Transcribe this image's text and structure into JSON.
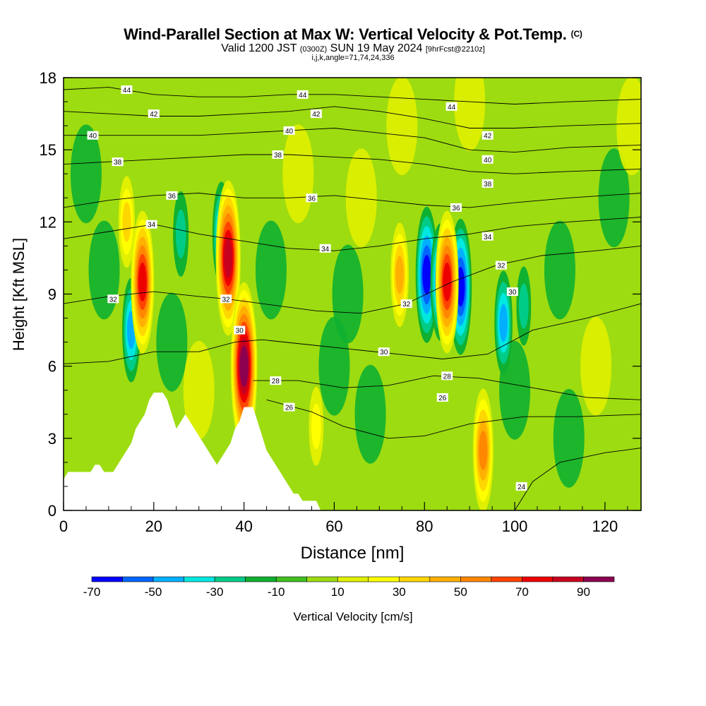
{
  "header": {
    "title": "Wind-Parallel Section at Max W: Vertical Velocity & Pot.Temp.",
    "title_mark": "(C)",
    "subtitle_valid": "Valid 1200 JST",
    "subtitle_z": "(0300Z)",
    "subtitle_date": "SUN 19 May 2024",
    "subtitle_fcst": "[9hrFcst@2210z]",
    "subtitle2": "i,j,k,angle=71,74,24,336"
  },
  "chart_data": {
    "type": "heatmap",
    "xlabel": "Distance [nm]",
    "ylabel": "Height [Kft MSL]",
    "xlim": [
      0,
      128
    ],
    "ylim": [
      0,
      18
    ],
    "xticks": [
      "0",
      "20",
      "40",
      "60",
      "80",
      "100",
      "120"
    ],
    "xtick_values": [
      0,
      20,
      40,
      60,
      80,
      100,
      120
    ],
    "yticks": [
      "0",
      "3",
      "6",
      "9",
      "12",
      "15",
      "18"
    ],
    "ytick_values": [
      0,
      3,
      6,
      9,
      12,
      15,
      18
    ],
    "colorbar": {
      "label": "Vertical Velocity [cm/s]",
      "boundaries": [
        -70,
        -60,
        -50,
        -40,
        -30,
        -20,
        -10,
        0,
        10,
        20,
        30,
        40,
        50,
        60,
        70,
        80,
        90,
        100
      ],
      "tick_labels": [
        "-70",
        "-50",
        "-30",
        "-10",
        "10",
        "30",
        "50",
        "70",
        "90"
      ],
      "tick_values": [
        -70,
        -50,
        -30,
        -10,
        10,
        30,
        50,
        70,
        90
      ],
      "colors": [
        "#0000ff",
        "#0066ff",
        "#00b0ff",
        "#00e8e0",
        "#00cc88",
        "#10b030",
        "#40c020",
        "#9ddc10",
        "#e0f000",
        "#ffff00",
        "#ffd700",
        "#ffb000",
        "#ff8800",
        "#ff4400",
        "#ee0000",
        "#c80020",
        "#8c0050",
        "#5a0080"
      ]
    },
    "updrafts": [
      {
        "x": 17.5,
        "y": 9.5,
        "w": 70
      },
      {
        "x": 36.5,
        "y": 10.5,
        "w": 80
      },
      {
        "x": 40,
        "y": 6.0,
        "w": 90
      },
      {
        "x": 74.5,
        "y": 9.8,
        "w": 40
      },
      {
        "x": 85,
        "y": 9.5,
        "w": 70
      },
      {
        "x": 93,
        "y": 2.5,
        "w": 55
      },
      {
        "x": 14,
        "y": 12.0,
        "w": 30
      },
      {
        "x": 56,
        "y": 3.5,
        "w": 20
      }
    ],
    "downdrafts": [
      {
        "x": 15,
        "y": 7.5,
        "w": -40
      },
      {
        "x": 35,
        "y": 11.5,
        "w": -40
      },
      {
        "x": 80.5,
        "y": 9.8,
        "w": -65
      },
      {
        "x": 83.5,
        "y": 9.5,
        "w": -50
      },
      {
        "x": 88,
        "y": 9.3,
        "w": -65
      },
      {
        "x": 97.5,
        "y": 7.8,
        "w": -40
      },
      {
        "x": 26,
        "y": 11.5,
        "w": -25
      },
      {
        "x": 102,
        "y": 8.5,
        "w": -20
      }
    ],
    "terrain": [
      [
        0,
        1.3
      ],
      [
        1,
        1.6
      ],
      [
        6,
        1.6
      ],
      [
        7,
        1.9
      ],
      [
        8,
        1.9
      ],
      [
        9,
        1.6
      ],
      [
        11,
        1.6
      ],
      [
        12,
        1.9
      ],
      [
        13,
        2.2
      ],
      [
        14,
        2.5
      ],
      [
        15,
        2.8
      ],
      [
        16,
        3.4
      ],
      [
        17,
        3.7
      ],
      [
        18,
        4.0
      ],
      [
        19,
        4.6
      ],
      [
        20,
        4.9
      ],
      [
        22,
        4.9
      ],
      [
        23,
        4.6
      ],
      [
        24,
        4.0
      ],
      [
        25,
        3.4
      ],
      [
        26,
        3.7
      ],
      [
        27,
        4.0
      ],
      [
        28,
        3.7
      ],
      [
        29,
        3.4
      ],
      [
        30,
        3.1
      ],
      [
        31,
        2.8
      ],
      [
        32,
        2.5
      ],
      [
        33,
        2.2
      ],
      [
        34,
        1.9
      ],
      [
        35,
        2.2
      ],
      [
        36,
        2.5
      ],
      [
        37,
        2.8
      ],
      [
        38,
        3.4
      ],
      [
        39,
        3.7
      ],
      [
        40,
        4.3
      ],
      [
        42,
        4.3
      ],
      [
        43,
        3.7
      ],
      [
        44,
        3.1
      ],
      [
        45,
        2.5
      ],
      [
        46,
        2.2
      ],
      [
        47,
        1.9
      ],
      [
        48,
        1.6
      ],
      [
        49,
        1.3
      ],
      [
        50,
        1.0
      ],
      [
        51,
        0.7
      ],
      [
        52,
        0.7
      ],
      [
        53,
        0.4
      ],
      [
        56,
        0.4
      ],
      [
        57,
        0.0
      ],
      [
        128,
        0.0
      ]
    ],
    "theta_contours": [
      {
        "label": "24",
        "pts": [
          [
            100,
            0
          ],
          [
            104,
            1.2
          ],
          [
            110,
            2.0
          ],
          [
            120,
            2.4
          ],
          [
            128,
            2.6
          ]
        ]
      },
      {
        "label": "26",
        "pts": [
          [
            45,
            4.6
          ],
          [
            55,
            4.1
          ],
          [
            62,
            3.5
          ],
          [
            72,
            3.0
          ],
          [
            80,
            3.1
          ],
          [
            90,
            3.6
          ],
          [
            102,
            3.9
          ],
          [
            114,
            3.9
          ],
          [
            128,
            4.0
          ]
        ]
      },
      {
        "label": "28",
        "pts": [
          [
            42,
            5.4
          ],
          [
            52,
            5.4
          ],
          [
            62,
            5.1
          ],
          [
            72,
            5.2
          ],
          [
            82,
            5.6
          ],
          [
            92,
            5.5
          ],
          [
            104,
            5.1
          ],
          [
            116,
            4.7
          ],
          [
            128,
            4.6
          ]
        ]
      },
      {
        "label": "30",
        "pts": [
          [
            0,
            6.1
          ],
          [
            10,
            6.2
          ],
          [
            20,
            6.6
          ],
          [
            30,
            6.6
          ],
          [
            38,
            7.0
          ],
          [
            44,
            7.1
          ],
          [
            54,
            6.9
          ],
          [
            64,
            6.7
          ],
          [
            74,
            6.5
          ],
          [
            84,
            6.3
          ],
          [
            94,
            6.5
          ],
          [
            104,
            7.5
          ],
          [
            116,
            8.0
          ],
          [
            128,
            8.6
          ]
        ]
      },
      {
        "label": "32",
        "pts": [
          [
            0,
            8.6
          ],
          [
            10,
            8.9
          ],
          [
            20,
            9.1
          ],
          [
            30,
            8.9
          ],
          [
            36,
            8.8
          ],
          [
            44,
            8.6
          ],
          [
            56,
            8.3
          ],
          [
            66,
            8.2
          ],
          [
            76,
            8.6
          ],
          [
            86,
            9.5
          ],
          [
            96,
            10.2
          ],
          [
            106,
            10.6
          ],
          [
            118,
            10.8
          ],
          [
            128,
            11.0
          ]
        ]
      },
      {
        "label": "34",
        "pts": [
          [
            0,
            11.3
          ],
          [
            10,
            11.6
          ],
          [
            20,
            11.9
          ],
          [
            30,
            11.5
          ],
          [
            40,
            11.2
          ],
          [
            50,
            10.9
          ],
          [
            60,
            10.8
          ],
          [
            70,
            11.0
          ],
          [
            80,
            11.3
          ],
          [
            90,
            11.5
          ],
          [
            100,
            11.8
          ],
          [
            112,
            12.0
          ],
          [
            128,
            12.2
          ]
        ]
      },
      {
        "label": "36",
        "pts": [
          [
            0,
            12.6
          ],
          [
            10,
            12.9
          ],
          [
            20,
            13.1
          ],
          [
            30,
            13.2
          ],
          [
            40,
            13.0
          ],
          [
            50,
            13.0
          ],
          [
            60,
            13.1
          ],
          [
            70,
            12.9
          ],
          [
            80,
            12.7
          ],
          [
            90,
            12.6
          ],
          [
            100,
            12.8
          ],
          [
            112,
            13.0
          ],
          [
            128,
            13.2
          ]
        ]
      },
      {
        "label": "38",
        "pts": [
          [
            0,
            14.4
          ],
          [
            10,
            14.5
          ],
          [
            20,
            14.6
          ],
          [
            30,
            14.7
          ],
          [
            40,
            14.8
          ],
          [
            50,
            14.8
          ],
          [
            60,
            14.7
          ],
          [
            70,
            14.6
          ],
          [
            80,
            14.4
          ],
          [
            90,
            14.1
          ],
          [
            100,
            14.0
          ],
          [
            112,
            14.1
          ],
          [
            128,
            14.2
          ]
        ]
      },
      {
        "label": "40",
        "pts": [
          [
            0,
            15.6
          ],
          [
            10,
            15.6
          ],
          [
            20,
            15.6
          ],
          [
            30,
            15.6
          ],
          [
            40,
            15.7
          ],
          [
            50,
            15.8
          ],
          [
            60,
            15.9
          ],
          [
            70,
            15.7
          ],
          [
            80,
            15.5
          ],
          [
            90,
            15.0
          ],
          [
            100,
            14.9
          ],
          [
            112,
            15.1
          ],
          [
            128,
            15.2
          ]
        ]
      },
      {
        "label": "42",
        "pts": [
          [
            0,
            16.6
          ],
          [
            10,
            16.5
          ],
          [
            20,
            16.4
          ],
          [
            30,
            16.4
          ],
          [
            40,
            16.5
          ],
          [
            50,
            16.6
          ],
          [
            60,
            16.8
          ],
          [
            70,
            16.6
          ],
          [
            80,
            16.3
          ],
          [
            90,
            15.9
          ],
          [
            100,
            15.9
          ],
          [
            112,
            16.0
          ],
          [
            128,
            16.1
          ]
        ]
      },
      {
        "label": "44",
        "pts": [
          [
            0,
            17.5
          ],
          [
            10,
            17.6
          ],
          [
            20,
            17.3
          ],
          [
            30,
            17.2
          ],
          [
            40,
            17.2
          ],
          [
            50,
            17.3
          ],
          [
            60,
            17.3
          ],
          [
            70,
            17.2
          ],
          [
            80,
            17.1
          ],
          [
            90,
            17.0
          ],
          [
            100,
            16.9
          ],
          [
            112,
            17.0
          ],
          [
            128,
            17.1
          ]
        ]
      }
    ],
    "contour_labels": [
      {
        "label": "44",
        "x": 14,
        "y": 17.5
      },
      {
        "label": "42",
        "x": 20,
        "y": 16.5
      },
      {
        "label": "40",
        "x": 6.5,
        "y": 15.6
      },
      {
        "label": "38",
        "x": 12,
        "y": 14.5
      },
      {
        "label": "36",
        "x": 24,
        "y": 13.1
      },
      {
        "label": "34",
        "x": 19.5,
        "y": 11.9
      },
      {
        "label": "32",
        "x": 11,
        "y": 8.8
      },
      {
        "label": "32",
        "x": 36,
        "y": 8.8
      },
      {
        "label": "30",
        "x": 39,
        "y": 7.5
      },
      {
        "label": "28",
        "x": 47,
        "y": 5.4
      },
      {
        "label": "26",
        "x": 50,
        "y": 4.3
      },
      {
        "label": "44",
        "x": 53,
        "y": 17.3
      },
      {
        "label": "42",
        "x": 56,
        "y": 16.5
      },
      {
        "label": "40",
        "x": 50,
        "y": 15.8
      },
      {
        "label": "38",
        "x": 47.5,
        "y": 14.8
      },
      {
        "label": "36",
        "x": 55,
        "y": 13.0
      },
      {
        "label": "34",
        "x": 58,
        "y": 10.9
      },
      {
        "label": "32",
        "x": 76,
        "y": 8.6
      },
      {
        "label": "30",
        "x": 71,
        "y": 6.6
      },
      {
        "label": "28",
        "x": 85,
        "y": 5.6
      },
      {
        "label": "26",
        "x": 84,
        "y": 4.7
      },
      {
        "label": "44",
        "x": 86,
        "y": 16.8
      },
      {
        "label": "42",
        "x": 94,
        "y": 15.6
      },
      {
        "label": "40",
        "x": 94,
        "y": 14.6
      },
      {
        "label": "38",
        "x": 94,
        "y": 13.6
      },
      {
        "label": "36",
        "x": 87,
        "y": 12.6
      },
      {
        "label": "34",
        "x": 94,
        "y": 11.4
      },
      {
        "label": "32",
        "x": 97,
        "y": 10.2
      },
      {
        "label": "30",
        "x": 99.5,
        "y": 9.1
      },
      {
        "label": "24",
        "x": 101.5,
        "y": 1.0
      }
    ]
  }
}
